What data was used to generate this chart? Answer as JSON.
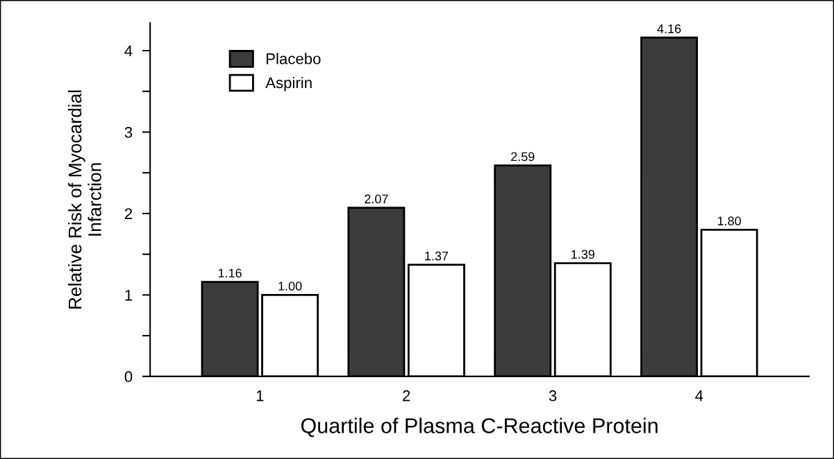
{
  "chart_data": {
    "type": "bar",
    "xlabel": "Quartile of Plasma C-Reactive Protein",
    "ylabel": "Relative Risk of Myocardial\nInfarction",
    "categories": [
      "1",
      "2",
      "3",
      "4"
    ],
    "series": [
      {
        "name": "Placebo",
        "color": "#3c3c3c",
        "values": [
          1.16,
          2.07,
          2.59,
          4.16
        ],
        "value_labels": [
          "1.16",
          "2.07",
          "2.59",
          "4.16"
        ]
      },
      {
        "name": "Aspirin",
        "color": "#ffffff",
        "values": [
          1.0,
          1.37,
          1.39,
          1.8
        ],
        "value_labels": [
          "1.00",
          "1.37",
          "1.39",
          "1.80"
        ]
      }
    ],
    "ylim": [
      0,
      4.34
    ],
    "yticks": [
      0,
      {
        "value": 0.5,
        "label": null
      },
      1,
      {
        "value": 1.5,
        "label": null
      },
      2,
      {
        "value": 2.5,
        "label": null
      },
      3,
      {
        "value": 3.5,
        "label": null
      },
      4
    ],
    "legend": "top left",
    "grid": false
  }
}
